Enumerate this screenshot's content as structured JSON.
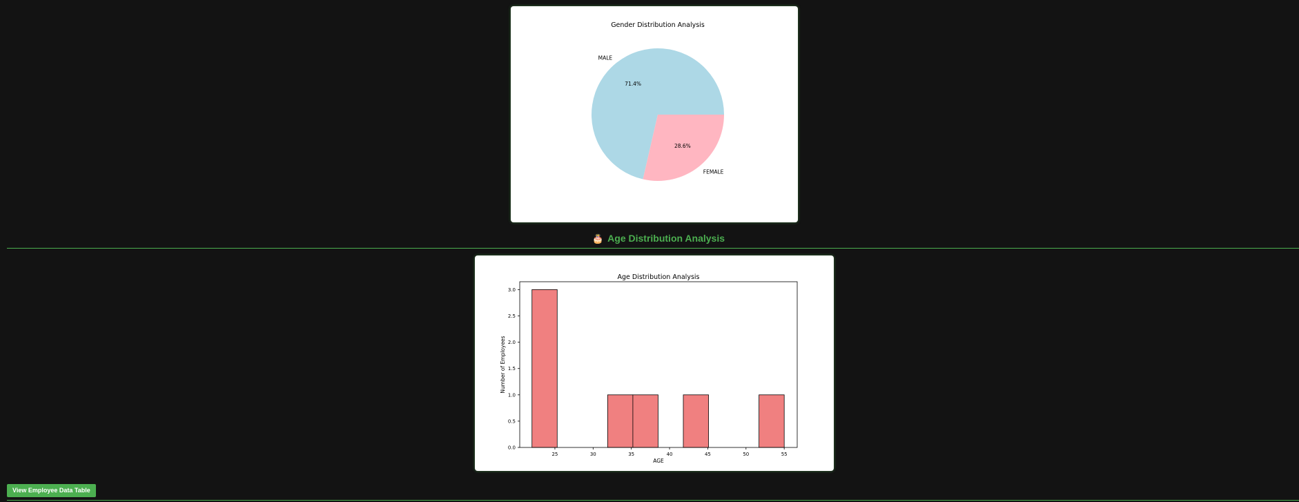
{
  "gender_chart": {
    "title": "Gender Distribution Analysis",
    "colors": {
      "MALE": "#add8e6",
      "FEMALE": "#ffb6c1"
    }
  },
  "age_section": {
    "emoji": "🎂",
    "heading": "Age Distribution Analysis"
  },
  "age_chart": {
    "title": "Age Distribution Analysis",
    "xlabel": "AGE",
    "ylabel": "Number of Employees",
    "x_ticks": [
      "25",
      "30",
      "35",
      "40",
      "45",
      "50",
      "55"
    ],
    "y_ticks": [
      "0.0",
      "0.5",
      "1.0",
      "1.5",
      "2.0",
      "2.5",
      "3.0"
    ],
    "bar_color": "#f08080"
  },
  "buttons": {
    "view_table": "View Employee Data Table"
  },
  "chart_data": [
    {
      "type": "pie",
      "title": "Gender Distribution Analysis",
      "labels": [
        "MALE",
        "FEMALE"
      ],
      "values": [
        71.4,
        28.6
      ],
      "percent_labels": [
        "71.4%",
        "28.6%"
      ]
    },
    {
      "type": "bar",
      "title": "Age Distribution Analysis",
      "xlabel": "AGE",
      "ylabel": "Number of Employees",
      "bins": [
        {
          "start": 22.0,
          "end": 25.3,
          "count": 3
        },
        {
          "start": 25.3,
          "end": 28.6,
          "count": 0
        },
        {
          "start": 28.6,
          "end": 31.9,
          "count": 0
        },
        {
          "start": 31.9,
          "end": 35.2,
          "count": 1
        },
        {
          "start": 35.2,
          "end": 38.5,
          "count": 1
        },
        {
          "start": 38.5,
          "end": 41.8,
          "count": 0
        },
        {
          "start": 41.8,
          "end": 45.1,
          "count": 1
        },
        {
          "start": 45.1,
          "end": 48.4,
          "count": 0
        },
        {
          "start": 48.4,
          "end": 51.7,
          "count": 0
        },
        {
          "start": 51.7,
          "end": 55.0,
          "count": 1
        }
      ],
      "xlim": [
        20.4,
        56.7
      ],
      "ylim": [
        0,
        3.15
      ],
      "grid": false
    }
  ]
}
